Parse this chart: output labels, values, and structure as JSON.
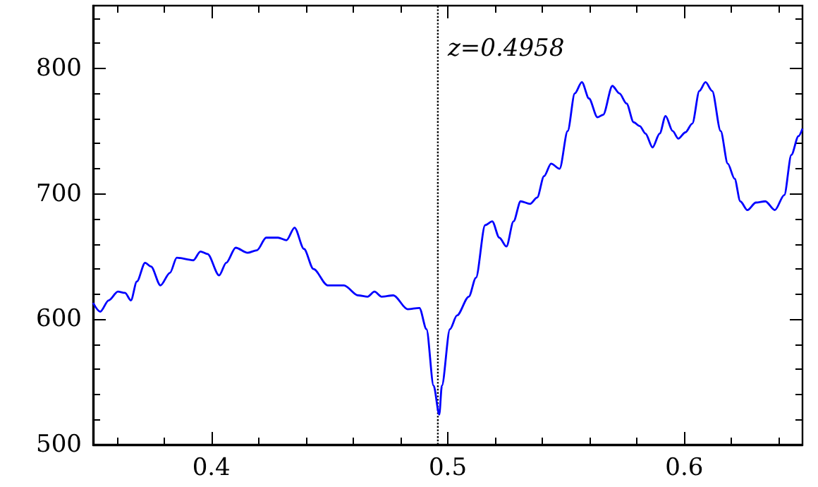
{
  "chart_data": {
    "type": "line",
    "x": [
      0.35,
      0.353,
      0.3566,
      0.3605,
      0.3635,
      0.366,
      0.3685,
      0.372,
      0.3745,
      0.3785,
      0.3825,
      0.3854,
      0.3924,
      0.3954,
      0.3984,
      0.4033,
      0.4063,
      0.4103,
      0.4153,
      0.4193,
      0.4232,
      0.4282,
      0.4318,
      0.4352,
      0.4392,
      0.4432,
      0.4492,
      0.4561,
      0.4621,
      0.4661,
      0.469,
      0.472,
      0.477,
      0.483,
      0.488,
      0.491,
      0.494,
      0.4964,
      0.4975,
      0.5009,
      0.5039,
      0.5089,
      0.5119,
      0.5158,
      0.5188,
      0.5218,
      0.5248,
      0.5278,
      0.5308,
      0.5348,
      0.5378,
      0.5407,
      0.5437,
      0.5473,
      0.5507,
      0.5537,
      0.5567,
      0.5597,
      0.5633,
      0.5657,
      0.5696,
      0.5726,
      0.5756,
      0.5786,
      0.5812,
      0.5836,
      0.5866,
      0.5896,
      0.5921,
      0.5951,
      0.5975,
      0.6005,
      0.6034,
      0.6064,
      0.609,
      0.6118,
      0.6154,
      0.6184,
      0.6213,
      0.6237,
      0.6267,
      0.6303,
      0.6343,
      0.6383,
      0.6423,
      0.6453,
      0.6483,
      0.65
    ],
    "series": [
      {
        "color": "#0000ff",
        "values": [
          613,
          606,
          615,
          622,
          621,
          615,
          630,
          645,
          642,
          627,
          637,
          649,
          647,
          654,
          652,
          635,
          645,
          657,
          653,
          655,
          665,
          665,
          663,
          673,
          656,
          640,
          627,
          627,
          619,
          618,
          622,
          618,
          619,
          608,
          609,
          592,
          547,
          524,
          547,
          592,
          603,
          618,
          633,
          675,
          678,
          665,
          658,
          678,
          694,
          692,
          697,
          714,
          724,
          720,
          750,
          780,
          789,
          776,
          761,
          763,
          786,
          780,
          772,
          757,
          754,
          748,
          737,
          748,
          762,
          750,
          744,
          749,
          756,
          782,
          789,
          782,
          750,
          724,
          712,
          694,
          687,
          693,
          694,
          687,
          699,
          731,
          746,
          752
        ]
      }
    ],
    "xlim": [
      0.35,
      0.65
    ],
    "xticks": [
      {
        "value": 0.36,
        "label": null
      },
      {
        "value": 0.38,
        "label": null
      },
      0.4,
      {
        "value": 0.42,
        "label": null
      },
      {
        "value": 0.44,
        "label": null
      },
      {
        "value": 0.46,
        "label": null
      },
      {
        "value": 0.48,
        "label": null
      },
      0.5,
      {
        "value": 0.52,
        "label": null
      },
      {
        "value": 0.54,
        "label": null
      },
      {
        "value": 0.56,
        "label": null
      },
      {
        "value": 0.58,
        "label": null
      },
      0.6,
      {
        "value": 0.62,
        "label": null
      },
      {
        "value": 0.64,
        "label": null
      }
    ],
    "ylim": [
      500,
      850
    ],
    "yticks": [
      500,
      {
        "value": 520,
        "label": null
      },
      {
        "value": 540,
        "label": null
      },
      {
        "value": 560,
        "label": null
      },
      {
        "value": 580,
        "label": null
      },
      600,
      {
        "value": 620,
        "label": null
      },
      {
        "value": 640,
        "label": null
      },
      {
        "value": 660,
        "label": null
      },
      {
        "value": 680,
        "label": null
      },
      700,
      {
        "value": 720,
        "label": null
      },
      {
        "value": 740,
        "label": null
      },
      {
        "value": 760,
        "label": null
      },
      {
        "value": 780,
        "label": null
      },
      800,
      {
        "value": 820,
        "label": null
      },
      {
        "value": 840,
        "label": null
      }
    ],
    "ref_lines": [
      {
        "axis": "x",
        "value": 0.4958,
        "label": "z=0.4958",
        "color": "#000000",
        "line_style": "dotted"
      }
    ],
    "marker": "none",
    "line_style": "solid"
  }
}
